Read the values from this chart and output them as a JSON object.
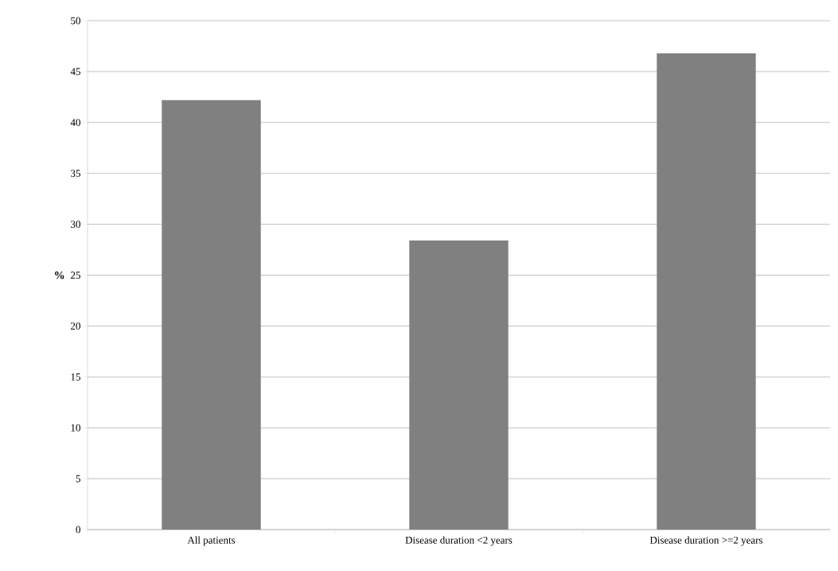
{
  "chart_data": {
    "type": "bar",
    "ylabel": "%",
    "categories": [
      "All patients",
      "Disease duration <2 years",
      "Disease duration >=2 years"
    ],
    "values": [
      42.2,
      28.4,
      46.8
    ],
    "color": "#808080",
    "ylim": [
      0,
      50
    ],
    "yticks": [
      0,
      5,
      10,
      15,
      20,
      25,
      30,
      35,
      40,
      45,
      50
    ],
    "grid": "y"
  }
}
